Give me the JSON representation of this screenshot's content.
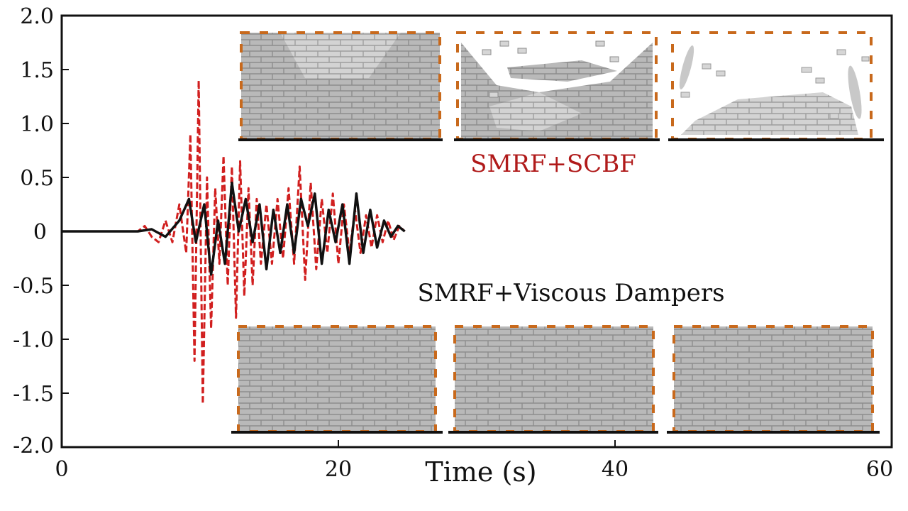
{
  "chart_data": {
    "type": "line",
    "title": "",
    "xlabel": "Time (s)",
    "ylabel": "",
    "xlim": [
      0,
      60
    ],
    "ylim": [
      -2.0,
      2.0
    ],
    "x_ticks": [
      0,
      20,
      40,
      60
    ],
    "x_tick_labels": [
      "0",
      "20",
      "40",
      "60"
    ],
    "y_ticks": [
      2.0,
      1.5,
      1.0,
      0.5,
      0,
      -0.5,
      -1.0,
      -1.5,
      -2.0
    ],
    "y_tick_labels": [
      "2.0",
      "1.5",
      "1.0",
      "0.5",
      "0",
      "-0.5",
      "-1.0",
      "-1.5",
      "-2.0"
    ],
    "grid": false,
    "series": [
      {
        "name": "SMRF+SCBF",
        "color": "#d11f1f",
        "style": "dashed",
        "x": [
          0,
          5.5,
          6,
          6.5,
          7,
          7.5,
          8,
          8.5,
          9,
          9.3,
          9.6,
          9.9,
          10.2,
          10.5,
          10.8,
          11.1,
          11.4,
          11.7,
          12.0,
          12.3,
          12.6,
          12.9,
          13.2,
          13.5,
          13.8,
          14.1,
          14.4,
          14.8,
          15.2,
          15.6,
          16.0,
          16.4,
          16.8,
          17.2,
          17.6,
          18.0,
          18.4,
          18.8,
          19.2,
          19.6,
          20.0,
          20.4,
          20.8,
          21.2,
          21.6,
          22.0,
          22.4,
          22.8,
          23.2,
          23.6,
          24.0,
          24.4,
          24.8
        ],
        "y": [
          0,
          0,
          0.05,
          -0.05,
          -0.1,
          0.1,
          -0.1,
          0.25,
          -0.2,
          0.9,
          -1.2,
          1.4,
          -1.6,
          0.5,
          -0.9,
          0.4,
          -0.3,
          0.7,
          -0.5,
          0.6,
          -0.8,
          0.65,
          -0.6,
          0.4,
          -0.5,
          0.3,
          -0.3,
          0.25,
          -0.3,
          0.3,
          -0.25,
          0.4,
          -0.3,
          0.6,
          -0.45,
          0.45,
          -0.35,
          0.3,
          -0.2,
          0.35,
          -0.3,
          0.25,
          -0.2,
          0.2,
          -0.2,
          0.15,
          -0.15,
          0.15,
          -0.1,
          0.1,
          -0.08,
          0.05,
          0
        ]
      },
      {
        "name": "SMRF+Viscous Dampers",
        "color": "#111111",
        "style": "solid",
        "x": [
          0,
          5.5,
          6.5,
          7.5,
          8.5,
          9.2,
          9.7,
          10.3,
          10.8,
          11.3,
          11.8,
          12.3,
          12.8,
          13.3,
          13.8,
          14.3,
          14.8,
          15.3,
          15.8,
          16.3,
          16.8,
          17.3,
          17.8,
          18.3,
          18.8,
          19.3,
          19.8,
          20.3,
          20.8,
          21.3,
          21.8,
          22.3,
          22.8,
          23.3,
          23.8,
          24.3,
          24.8
        ],
        "y": [
          0,
          0,
          0.02,
          -0.05,
          0.1,
          0.3,
          -0.1,
          0.25,
          -0.4,
          0.1,
          -0.3,
          0.45,
          0.0,
          0.3,
          -0.1,
          0.25,
          -0.35,
          0.2,
          -0.2,
          0.25,
          -0.2,
          0.3,
          0.05,
          0.35,
          -0.3,
          0.2,
          -0.1,
          0.25,
          -0.3,
          0.35,
          -0.2,
          0.2,
          -0.15,
          0.1,
          -0.05,
          0.05,
          0
        ]
      }
    ],
    "annotations": {
      "top_label": "SMRF+SCBF",
      "bottom_label": "SMRF+Viscous Dampers"
    }
  },
  "colors": {
    "frame": "#111111",
    "wall_fill": "#b9b9b9",
    "wall_mortar": "#8d8d8d",
    "damage_fill": "#d0d0d0",
    "frame_dash": "#c8691c"
  },
  "insets": {
    "top_row": [
      "intact-wall",
      "damaged-wall",
      "collapsed-wall"
    ],
    "bottom_row": [
      "intact-wall",
      "intact-wall",
      "intact-wall"
    ]
  }
}
